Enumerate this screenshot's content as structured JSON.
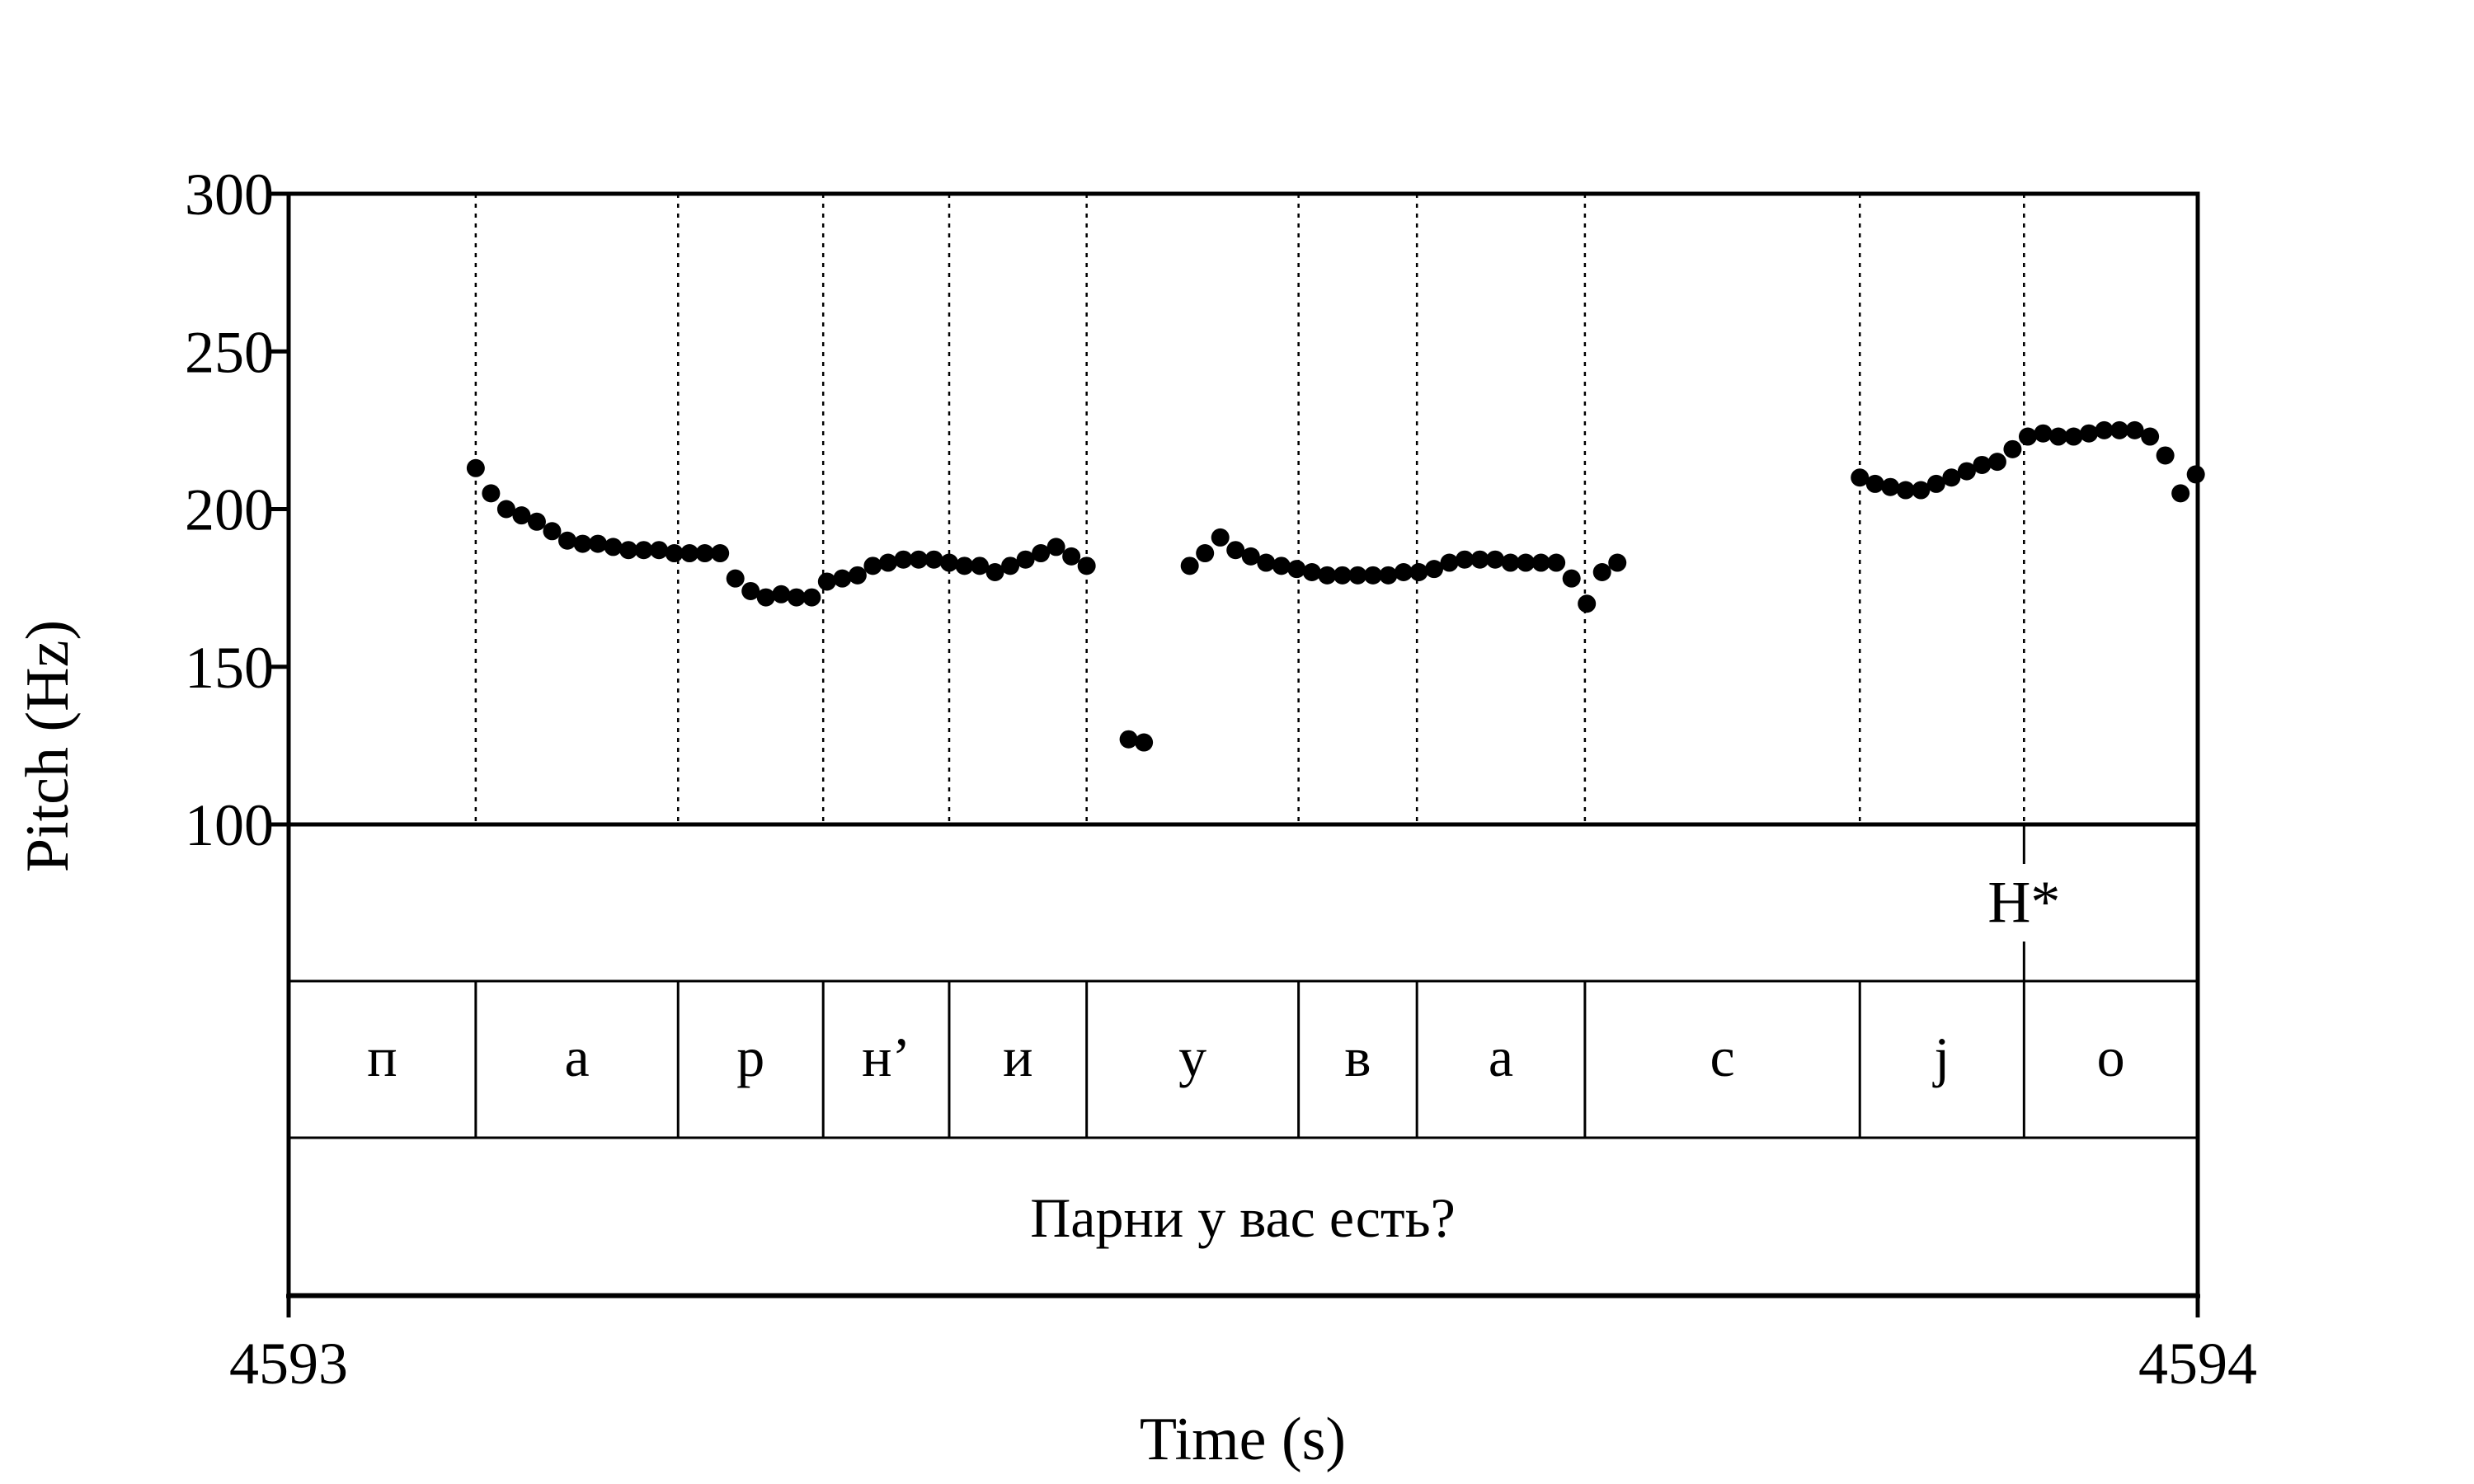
{
  "chart_data": {
    "type": "scatter",
    "title": "",
    "ylabel": "Pitch (Hz)",
    "xlabel": "Time (s)",
    "ylim": [
      100,
      300
    ],
    "yticks": [
      100,
      150,
      200,
      250,
      300
    ],
    "xlim": [
      4593,
      4594
    ],
    "xtick_labels": [
      "4593",
      "4594"
    ],
    "grid": false,
    "segment_boundaries": [
      4593.098,
      4593.204,
      4593.28,
      4593.346,
      4593.418,
      4593.529,
      4593.591,
      4593.679,
      4593.823,
      4593.909,
      4594.0
    ],
    "segments": [
      "п",
      "а",
      "р",
      "н’",
      "и",
      "у",
      "в",
      "а",
      "с",
      "j",
      "о"
    ],
    "tone_tier": {
      "label": "H*",
      "time": 4593.909
    },
    "sentence": "Парни у вас есть?",
    "pitch_points": [
      [
        4593.098,
        213
      ],
      [
        4593.106,
        205
      ],
      [
        4593.114,
        200
      ],
      [
        4593.122,
        198
      ],
      [
        4593.13,
        196
      ],
      [
        4593.138,
        193
      ],
      [
        4593.146,
        190
      ],
      [
        4593.154,
        189
      ],
      [
        4593.162,
        189
      ],
      [
        4593.17,
        188
      ],
      [
        4593.178,
        187
      ],
      [
        4593.186,
        187
      ],
      [
        4593.194,
        187
      ],
      [
        4593.202,
        186
      ],
      [
        4593.21,
        186
      ],
      [
        4593.218,
        186
      ],
      [
        4593.226,
        186
      ],
      [
        4593.234,
        178
      ],
      [
        4593.242,
        174
      ],
      [
        4593.25,
        172
      ],
      [
        4593.258,
        173
      ],
      [
        4593.266,
        172
      ],
      [
        4593.274,
        172
      ],
      [
        4593.282,
        177
      ],
      [
        4593.29,
        178
      ],
      [
        4593.298,
        179
      ],
      [
        4593.306,
        182
      ],
      [
        4593.314,
        183
      ],
      [
        4593.322,
        184
      ],
      [
        4593.33,
        184
      ],
      [
        4593.338,
        184
      ],
      [
        4593.346,
        183
      ],
      [
        4593.354,
        182
      ],
      [
        4593.362,
        182
      ],
      [
        4593.37,
        180
      ],
      [
        4593.378,
        182
      ],
      [
        4593.386,
        184
      ],
      [
        4593.394,
        186
      ],
      [
        4593.402,
        188
      ],
      [
        4593.41,
        185
      ],
      [
        4593.418,
        182
      ],
      [
        4593.44,
        127
      ],
      [
        4593.448,
        126
      ],
      [
        4593.472,
        182
      ],
      [
        4593.48,
        186
      ],
      [
        4593.488,
        191
      ],
      [
        4593.496,
        187
      ],
      [
        4593.504,
        185
      ],
      [
        4593.512,
        183
      ],
      [
        4593.52,
        182
      ],
      [
        4593.528,
        181
      ],
      [
        4593.536,
        180
      ],
      [
        4593.544,
        179
      ],
      [
        4593.552,
        179
      ],
      [
        4593.56,
        179
      ],
      [
        4593.568,
        179
      ],
      [
        4593.576,
        179
      ],
      [
        4593.584,
        180
      ],
      [
        4593.592,
        180
      ],
      [
        4593.6,
        181
      ],
      [
        4593.608,
        183
      ],
      [
        4593.616,
        184
      ],
      [
        4593.624,
        184
      ],
      [
        4593.632,
        184
      ],
      [
        4593.64,
        183
      ],
      [
        4593.648,
        183
      ],
      [
        4593.656,
        183
      ],
      [
        4593.664,
        183
      ],
      [
        4593.672,
        178
      ],
      [
        4593.68,
        170
      ],
      [
        4593.688,
        180
      ],
      [
        4593.696,
        183
      ],
      [
        4593.823,
        210
      ],
      [
        4593.831,
        208
      ],
      [
        4593.839,
        207
      ],
      [
        4593.847,
        206
      ],
      [
        4593.855,
        206
      ],
      [
        4593.863,
        208
      ],
      [
        4593.871,
        210
      ],
      [
        4593.879,
        212
      ],
      [
        4593.887,
        214
      ],
      [
        4593.895,
        215
      ],
      [
        4593.903,
        219
      ],
      [
        4593.911,
        223
      ],
      [
        4593.919,
        224
      ],
      [
        4593.927,
        223
      ],
      [
        4593.935,
        223
      ],
      [
        4593.943,
        224
      ],
      [
        4593.951,
        225
      ],
      [
        4593.959,
        225
      ],
      [
        4593.967,
        225
      ],
      [
        4593.975,
        223
      ],
      [
        4593.983,
        217
      ],
      [
        4593.991,
        205
      ],
      [
        4593.999,
        211
      ]
    ]
  }
}
